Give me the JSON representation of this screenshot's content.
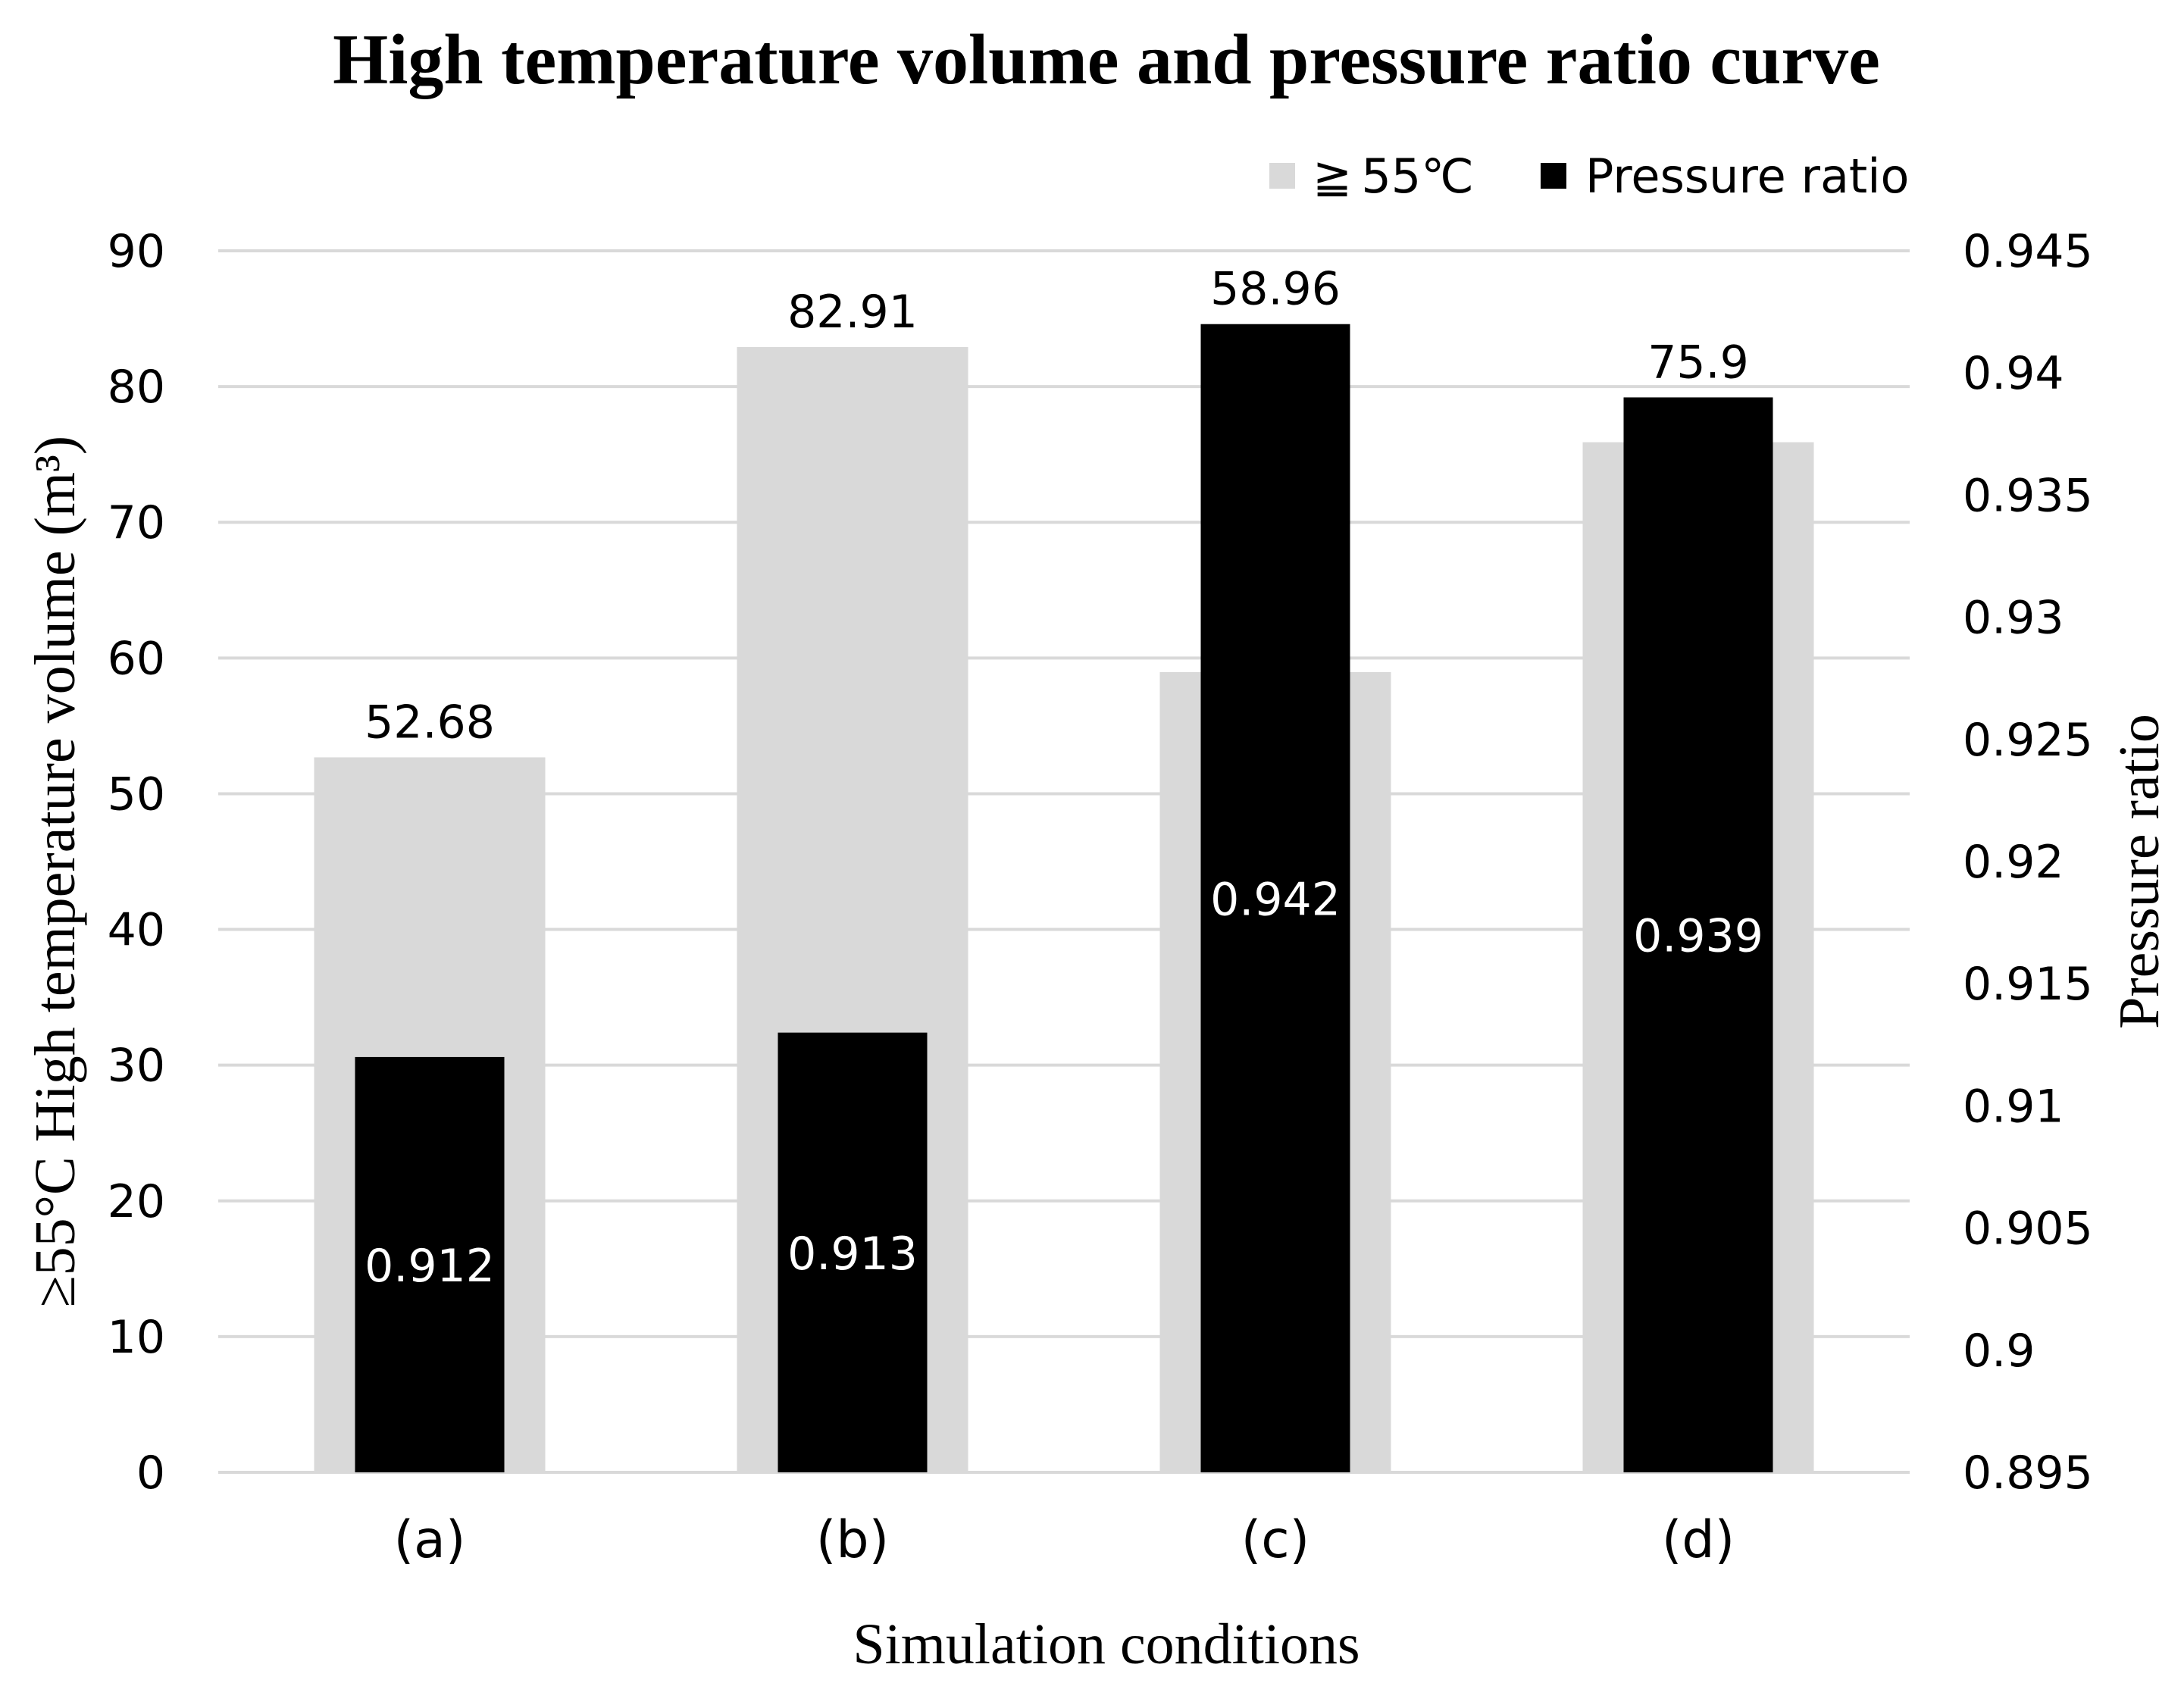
{
  "chart_data": {
    "type": "bar",
    "title": "High temperature volume and pressure ratio curve",
    "xlabel": "Simulation conditions",
    "ylabel_left": "≥55°C High temperature volume (m³)",
    "ylabel_right": "Pressure ratio",
    "categories": [
      "(a)",
      "(b)",
      "(c)",
      "(d)"
    ],
    "y_left": {
      "range": [
        0,
        90
      ],
      "ticks": [
        0,
        10,
        20,
        30,
        40,
        50,
        60,
        70,
        80,
        90
      ],
      "tick_labels": [
        "0",
        "10",
        "20",
        "30",
        "40",
        "50",
        "60",
        "70",
        "80",
        "90"
      ]
    },
    "y_right": {
      "range": [
        0.895,
        0.945
      ],
      "ticks": [
        0.895,
        0.9,
        0.905,
        0.91,
        0.915,
        0.92,
        0.925,
        0.93,
        0.935,
        0.94,
        0.945
      ],
      "tick_labels": [
        "0.895",
        "0.9",
        "0.905",
        "0.91",
        "0.915",
        "0.92",
        "0.925",
        "0.93",
        "0.935",
        "0.94",
        "0.945"
      ]
    },
    "grid": true,
    "legend_position": "top-right",
    "series": [
      {
        "name": "≧ 55℃",
        "axis": "left",
        "color": "#d9d9d9",
        "values": [
          52.68,
          82.91,
          58.96,
          75.9
        ],
        "labels": [
          "52.68",
          "82.91",
          "58.96",
          "75.9"
        ]
      },
      {
        "name": "Pressure ratio",
        "axis": "right",
        "color": "#000000",
        "values": [
          0.912,
          0.913,
          0.942,
          0.939
        ],
        "labels": [
          "0.912",
          "0.913",
          "0.942",
          "0.939"
        ]
      }
    ]
  }
}
